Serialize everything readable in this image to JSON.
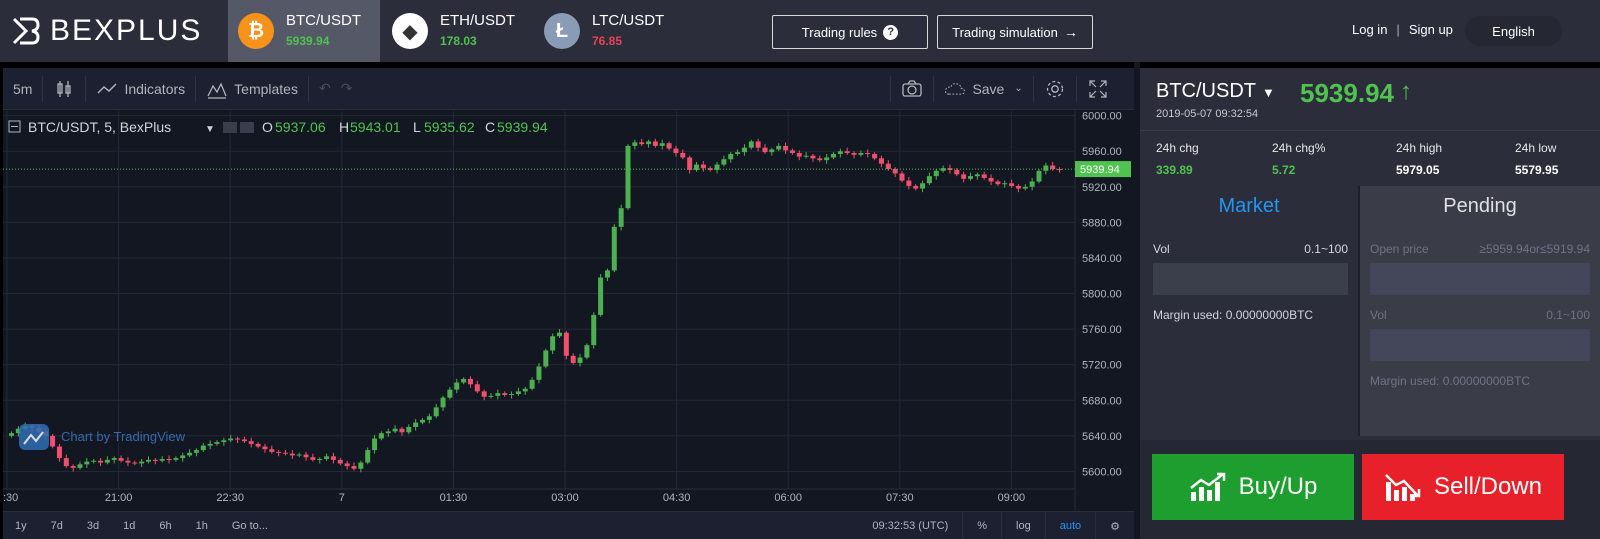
{
  "header": {
    "logo_text": "BEXPLUS",
    "pairs": [
      {
        "symbol": "BTC/USDT",
        "price": "5939.94",
        "icon": "bitcoin-icon",
        "coin_glyph": "₿",
        "coin_color": "#f7931a",
        "trend": "up"
      },
      {
        "symbol": "ETH/USDT",
        "price": "178.03",
        "icon": "ethereum-icon",
        "coin_glyph": "◆",
        "coin_color": "#ffffff",
        "trend": "up"
      },
      {
        "symbol": "LTC/USDT",
        "price": "76.85",
        "icon": "litecoin-icon",
        "coin_glyph": "Ł",
        "coin_color": "#8a9bb5",
        "trend": "down"
      }
    ],
    "trading_rules_label": "Trading rules",
    "trading_sim_label": "Trading simulation",
    "login_label": "Log in",
    "signup_label": "Sign up",
    "language": "English"
  },
  "toolbar": {
    "interval": "5m",
    "indicators_label": "Indicators",
    "templates_label": "Templates",
    "save_label": "Save"
  },
  "chart": {
    "legend_symbol": "BTC/USDT, 5, BexPlus",
    "o_label": "O",
    "o_value": "5937.06",
    "h_label": "H",
    "h_value": "5943.01",
    "l_label": "L",
    "l_value": "5935.62",
    "c_label": "C",
    "c_value": "5939.94",
    "watermark": "Chart by TradingView",
    "last_price_label": "5939.94"
  },
  "chart_data": {
    "type": "candlestick",
    "y_ticks": [
      6000,
      5960,
      5920,
      5880,
      5840,
      5800,
      5760,
      5720,
      5680,
      5640,
      5600
    ],
    "y_tick_labels": [
      "6000.00",
      "5960.00",
      "5920.00",
      "5880.00",
      "5840.00",
      "5800.00",
      "5760.00",
      "5720.00",
      "5680.00",
      "5640.00",
      "5600.00"
    ],
    "ylim": [
      5587,
      6003
    ],
    "x_tick_labels": [
      ":30",
      "21:00",
      "22:30",
      "7",
      "01:30",
      "03:00",
      "04:30",
      "06:00",
      "07:30",
      "09:00"
    ],
    "last_price": 5939.94,
    "closes": [
      5643,
      5648,
      5651,
      5649,
      5645,
      5640,
      5628,
      5615,
      5606,
      5604,
      5608,
      5611,
      5612,
      5610,
      5613,
      5615,
      5612,
      5610,
      5609,
      5611,
      5613,
      5612,
      5614,
      5613,
      5615,
      5618,
      5621,
      5624,
      5629,
      5631,
      5633,
      5635,
      5637,
      5636,
      5634,
      5631,
      5628,
      5625,
      5622,
      5621,
      5620,
      5618,
      5619,
      5616,
      5613,
      5614,
      5617,
      5613,
      5609,
      5606,
      5603,
      5610,
      5624,
      5637,
      5643,
      5645,
      5648,
      5644,
      5650,
      5655,
      5658,
      5662,
      5672,
      5683,
      5692,
      5700,
      5704,
      5698,
      5690,
      5684,
      5685,
      5688,
      5686,
      5687,
      5690,
      5693,
      5703,
      5718,
      5736,
      5752,
      5756,
      5730,
      5722,
      5728,
      5742,
      5776,
      5818,
      5826,
      5875,
      5896,
      5966,
      5970,
      5968,
      5971,
      5966,
      5969,
      5963,
      5958,
      5953,
      5939,
      5945,
      5941,
      5939,
      5945,
      5951,
      5957,
      5959,
      5964,
      5971,
      5964,
      5959,
      5962,
      5966,
      5961,
      5958,
      5954,
      5955,
      5952,
      5950,
      5953,
      5957,
      5960,
      5958,
      5956,
      5958,
      5957,
      5952,
      5946,
      5940,
      5935,
      5927,
      5921,
      5918,
      5924,
      5932,
      5938,
      5941,
      5939,
      5934,
      5929,
      5932,
      5934,
      5930,
      5926,
      5923,
      5924,
      5921,
      5918,
      5920,
      5926,
      5938,
      5944,
      5940,
      5939.94
    ],
    "opens_offset_note": ""
  },
  "time_ranges": [
    "1y",
    "7d",
    "3d",
    "1d",
    "6h",
    "1h",
    "Go to..."
  ],
  "bottom_bar": {
    "clock": "09:32:53 (UTC)",
    "percent": "%",
    "log": "log",
    "auto": "auto"
  },
  "panel": {
    "pair": "BTC/USDT",
    "timestamp": "2019-05-07 09:32:54",
    "price": "5939.94",
    "stats": [
      {
        "label": "24h chg",
        "value": "339.89",
        "color": "up"
      },
      {
        "label": "24h chg%",
        "value": "5.72",
        "color": "up"
      },
      {
        "label": "24h high",
        "value": "5979.05",
        "color": "white"
      },
      {
        "label": "24h low",
        "value": "5579.95",
        "color": "white"
      }
    ],
    "market_tab": "Market",
    "pending_tab": "Pending",
    "market": {
      "vol_label": "Vol",
      "vol_range": "0.1~100",
      "margin_label": "Margin used: 0.00000000BTC"
    },
    "pending": {
      "open_price_label": "Open price",
      "open_price_range": "≥5959.94or≤5919.94",
      "vol_label": "Vol",
      "vol_range": "0.1~100",
      "margin_label": "Margin used: 0.00000000BTC"
    },
    "buy_label": "Buy/Up",
    "sell_label": "Sell/Down"
  }
}
